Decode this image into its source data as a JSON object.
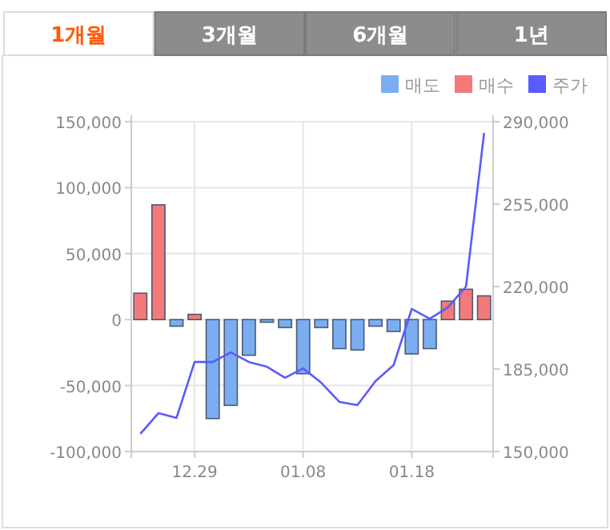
{
  "chart_data": {
    "type": "bar",
    "annotations": [
      "1개월",
      "3개월",
      "6개월",
      "1년"
    ],
    "categories": [
      null,
      null,
      null,
      "12.29",
      null,
      null,
      null,
      null,
      null,
      "01.08",
      null,
      null,
      null,
      null,
      null,
      "01.18",
      null,
      null,
      null,
      null
    ],
    "series": [
      {
        "name": "매도",
        "color": "#7aaef0",
        "values": [
          null,
          null,
          -5000,
          null,
          -75000,
          -65000,
          -27000,
          -2000,
          -6000,
          -41000,
          -6000,
          -22000,
          -23000,
          -5000,
          -9000,
          -26000,
          -22000,
          null,
          null,
          null
        ]
      },
      {
        "name": "매수",
        "color": "#f47a7a",
        "values": [
          20000,
          87000,
          null,
          4000,
          null,
          null,
          null,
          null,
          null,
          null,
          null,
          null,
          null,
          null,
          null,
          null,
          null,
          14000,
          23000,
          18000
        ]
      },
      {
        "name": "주가",
        "color": "#5a5aff",
        "type": "line",
        "axis": "y2",
        "values": [
          157500,
          166300,
          164300,
          188000,
          188000,
          192100,
          188000,
          186000,
          181300,
          185300,
          179200,
          171100,
          169700,
          179900,
          186700,
          210500,
          206400,
          211200,
          220000,
          285200
        ]
      }
    ],
    "ylim": [
      -100000,
      150000
    ],
    "yticks": [
      {
        "value": -100000,
        "label": "-100,000"
      },
      {
        "value": -50000,
        "label": "-50,000"
      },
      0,
      {
        "value": 50000,
        "label": "50,000"
      },
      {
        "value": 100000,
        "label": "100,000"
      },
      {
        "value": 150000,
        "label": "150,000"
      }
    ],
    "y2lim": [
      150000,
      290000
    ],
    "y2ticks": [
      {
        "value": 150000,
        "label": "150,000"
      },
      {
        "value": 185000,
        "label": "185,000"
      },
      {
        "value": 220000,
        "label": "220,000"
      },
      {
        "value": 255000,
        "label": "255,000"
      },
      {
        "value": 290000,
        "label": "290,000"
      }
    ],
    "grid": true,
    "legend": "top right",
    "marker": "none"
  }
}
